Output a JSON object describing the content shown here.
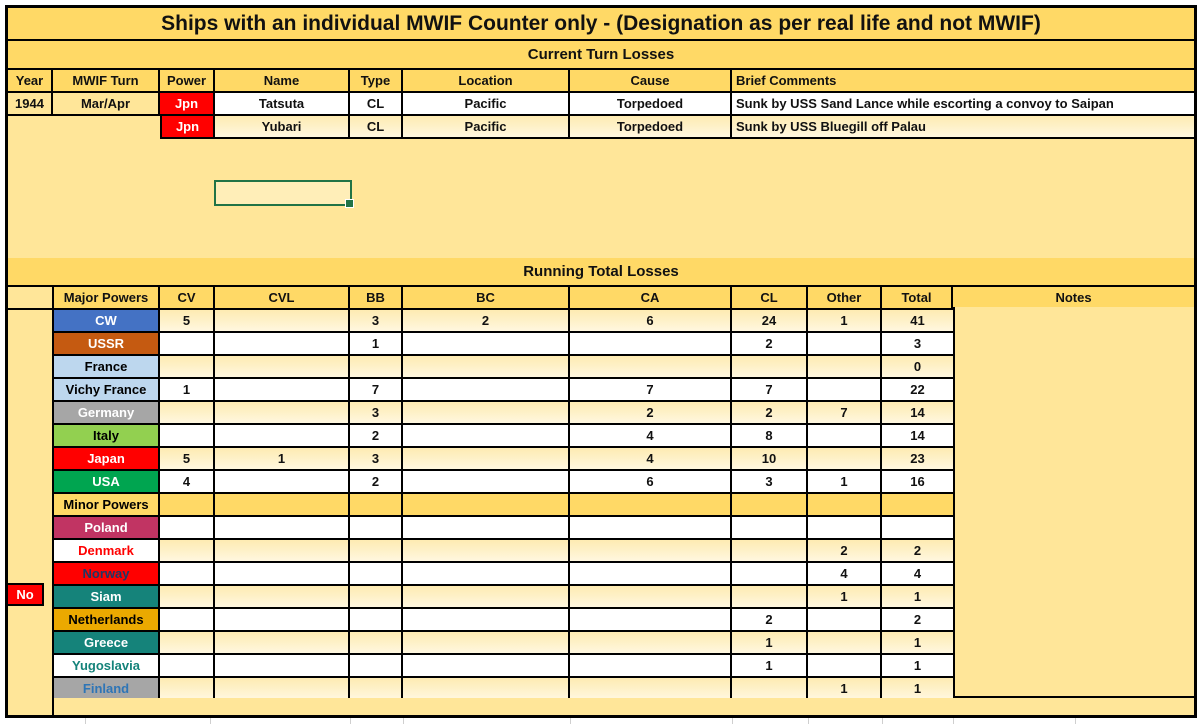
{
  "title": "Ships with an individual MWIF Counter only - (Designation as per real life and not MWIF)",
  "colors": {
    "band_gold": "#FFD966",
    "sheet_gold": "#FFE699",
    "row_cream": "#FBEEC4",
    "grid_line": "#000000",
    "selection_green": "#217346",
    "flag_red": "#FF0000"
  },
  "current_turn": {
    "section_label": "Current Turn Losses",
    "headers": [
      "Year",
      "MWIF Turn",
      "Power",
      "Name",
      "Type",
      "Location",
      "Cause",
      "Brief Comments"
    ],
    "rows": [
      {
        "year": "1944",
        "turn": "Mar/Apr",
        "power": "Jpn",
        "name": "Tatsuta",
        "type": "CL",
        "location": "Pacific",
        "cause": "Torpedoed",
        "comments": "Sunk by USS Sand Lance while escorting a convoy to Saipan"
      },
      {
        "year": "",
        "turn": "",
        "power": "Jpn",
        "name": "Yubari",
        "type": "CL",
        "location": "Pacific",
        "cause": "Torpedoed",
        "comments": "Sunk by USS Bluegill off Palau"
      }
    ],
    "power_bg": "#FF0000",
    "power_fg": "#FFFFFF"
  },
  "running_total": {
    "section_label": "Running Total Losses",
    "headers": [
      "Major Powers",
      "CV",
      "CVL",
      "BB",
      "BC",
      "CA",
      "CL",
      "Other",
      "Total",
      "Notes"
    ],
    "rows": [
      {
        "label": "CW",
        "bg": "#4472C4",
        "fg": "#FFFFFF",
        "values": {
          "cv": "5",
          "bb": "3",
          "bc": "2",
          "ca": "6",
          "cl": "24",
          "other": "1",
          "total": "41"
        }
      },
      {
        "label": "USSR",
        "bg": "#C55A11",
        "fg": "#FFFFFF",
        "values": {
          "bb": "1",
          "cl": "2",
          "total": "3"
        }
      },
      {
        "label": "France",
        "bg": "#BDD7EE",
        "fg": "#000000",
        "values": {
          "total": "0"
        }
      },
      {
        "label": "Vichy France",
        "bg": "#BDD7EE",
        "fg": "#000000",
        "values": {
          "cv": "1",
          "bb": "7",
          "ca": "7",
          "cl": "7",
          "total": "22"
        }
      },
      {
        "label": "Germany",
        "bg": "#A6A6A6",
        "fg": "#FFFFFF",
        "values": {
          "bb": "3",
          "ca": "2",
          "cl": "2",
          "other": "7",
          "total": "14"
        }
      },
      {
        "label": "Italy",
        "bg": "#92D050",
        "fg": "#000000",
        "values": {
          "bb": "2",
          "ca": "4",
          "cl": "8",
          "total": "14"
        }
      },
      {
        "label": "Japan",
        "bg": "#FF0000",
        "fg": "#FFFFFF",
        "values": {
          "cv": "5",
          "cvl": "1",
          "bb": "3",
          "ca": "4",
          "cl": "10",
          "total": "23"
        }
      },
      {
        "label": "USA",
        "bg": "#00A550",
        "fg": "#FFFFFF",
        "values": {
          "cv": "4",
          "bb": "2",
          "ca": "6",
          "cl": "3",
          "other": "1",
          "total": "16"
        }
      },
      {
        "label": "Minor Powers",
        "band": true,
        "bg": "#FFD966",
        "fg": "#000000",
        "values": {}
      },
      {
        "label": "Poland",
        "bg": "#C13463",
        "fg": "#FFFFFF",
        "values": {}
      },
      {
        "label": "Denmark",
        "bg": "#FFFFFF",
        "fg": "#FF0000",
        "values": {
          "other": "2",
          "total": "2"
        }
      },
      {
        "label": "Norway",
        "bg": "#FF0000",
        "fg": "#1F3864",
        "side_label": "No",
        "values": {
          "other": "4",
          "total": "4"
        }
      },
      {
        "label": "Siam",
        "bg": "#15837A",
        "fg": "#FFFFFF",
        "values": {
          "other": "1",
          "total": "1"
        }
      },
      {
        "label": "Netherlands",
        "bg": "#EBA900",
        "fg": "#000000",
        "values": {
          "cl": "2",
          "total": "2"
        }
      },
      {
        "label": "Greece",
        "bg": "#15837A",
        "fg": "#FFFFFF",
        "values": {
          "cl": "1",
          "total": "1"
        }
      },
      {
        "label": "Yugoslavia",
        "bg": "#FFFFFF",
        "fg": "#15837A",
        "values": {
          "cl": "1",
          "total": "1"
        }
      },
      {
        "label": "Finland",
        "bg": "#A6A6A6",
        "fg": "#2E75B6",
        "values": {
          "other": "1",
          "total": "1"
        }
      }
    ]
  }
}
